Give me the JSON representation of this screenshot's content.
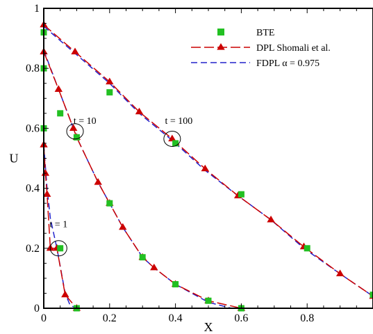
{
  "chart_data": {
    "type": "scatter",
    "xlabel": "X",
    "ylabel": "U",
    "xlim": [
      0,
      1
    ],
    "ylim": [
      0,
      1
    ],
    "x_ticks": [
      "0",
      "0.2",
      "0.4",
      "0.6",
      "0.8"
    ],
    "y_ticks": [
      "0",
      "0.2",
      "0.4",
      "0.6",
      "0.8",
      "1"
    ],
    "grid": false,
    "legend_position": "top-right",
    "series": [
      {
        "name": "BTE",
        "style": "square-markers",
        "color": "#22c022",
        "groups": [
          {
            "x": [
              0.0,
              0.05,
              0.1
            ],
            "y": [
              0.6,
              0.2,
              0.0
            ]
          },
          {
            "x": [
              0.0,
              0.05,
              0.1,
              0.2,
              0.3,
              0.4,
              0.5,
              0.6
            ],
            "y": [
              0.8,
              0.65,
              0.57,
              0.35,
              0.17,
              0.08,
              0.025,
              0.0
            ]
          },
          {
            "x": [
              0.0,
              0.2,
              0.4,
              0.6,
              0.8,
              1.0
            ],
            "y": [
              0.92,
              0.72,
              0.55,
              0.38,
              0.2,
              0.045
            ]
          }
        ]
      },
      {
        "name": "DPL Shomali et al.",
        "style": "long-dash-triangles",
        "color": "#cc0000",
        "groups": [
          {
            "x": [
              0.0,
              0.005,
              0.01,
              0.02,
              0.04,
              0.065,
              0.1
            ],
            "y": [
              0.545,
              0.45,
              0.38,
              0.2,
              0.2,
              0.045,
              0.0
            ]
          },
          {
            "x": [
              0.0,
              0.045,
              0.09,
              0.1,
              0.165,
              0.2,
              0.24,
              0.3,
              0.335,
              0.4,
              0.5,
              0.6
            ],
            "y": [
              0.855,
              0.73,
              0.6,
              0.57,
              0.42,
              0.35,
              0.27,
              0.17,
              0.135,
              0.08,
              0.025,
              0.0
            ]
          },
          {
            "x": [
              0.0,
              0.095,
              0.2,
              0.29,
              0.39,
              0.49,
              0.59,
              0.69,
              0.79,
              0.9,
              1.0
            ],
            "y": [
              0.945,
              0.855,
              0.755,
              0.655,
              0.565,
              0.465,
              0.375,
              0.295,
              0.205,
              0.115,
              0.04
            ]
          }
        ]
      },
      {
        "name": "FDPL α = 0.975",
        "style": "dashed",
        "color": "#2222cc",
        "groups": [
          {
            "x": [
              0.0,
              0.01,
              0.02,
              0.03,
              0.04,
              0.05,
              0.065,
              0.08,
              0.1
            ],
            "y": [
              0.545,
              0.4,
              0.3,
              0.25,
              0.2,
              0.14,
              0.05,
              0.01,
              0.0
            ]
          },
          {
            "x": [
              0.0,
              0.045,
              0.09,
              0.1,
              0.165,
              0.2,
              0.24,
              0.3,
              0.335,
              0.4,
              0.5,
              0.57
            ],
            "y": [
              0.86,
              0.73,
              0.6,
              0.57,
              0.42,
              0.35,
              0.27,
              0.17,
              0.135,
              0.08,
              0.02,
              0.0
            ]
          },
          {
            "x": [
              0.0,
              0.095,
              0.2,
              0.29,
              0.39,
              0.49,
              0.59,
              0.69,
              0.79,
              0.9,
              1.0
            ],
            "y": [
              0.94,
              0.85,
              0.75,
              0.65,
              0.56,
              0.46,
              0.375,
              0.295,
              0.2,
              0.115,
              0.04
            ]
          }
        ]
      }
    ],
    "annotations": [
      {
        "text": "t = 1",
        "x": 0.045,
        "y": 0.27,
        "circle_x": 0.045,
        "circle_y": 0.2
      },
      {
        "text": "t = 10",
        "x": 0.125,
        "y": 0.615,
        "circle_x": 0.095,
        "circle_y": 0.59
      },
      {
        "text": "t = 100",
        "x": 0.41,
        "y": 0.615,
        "circle_x": 0.39,
        "circle_y": 0.565
      }
    ]
  }
}
